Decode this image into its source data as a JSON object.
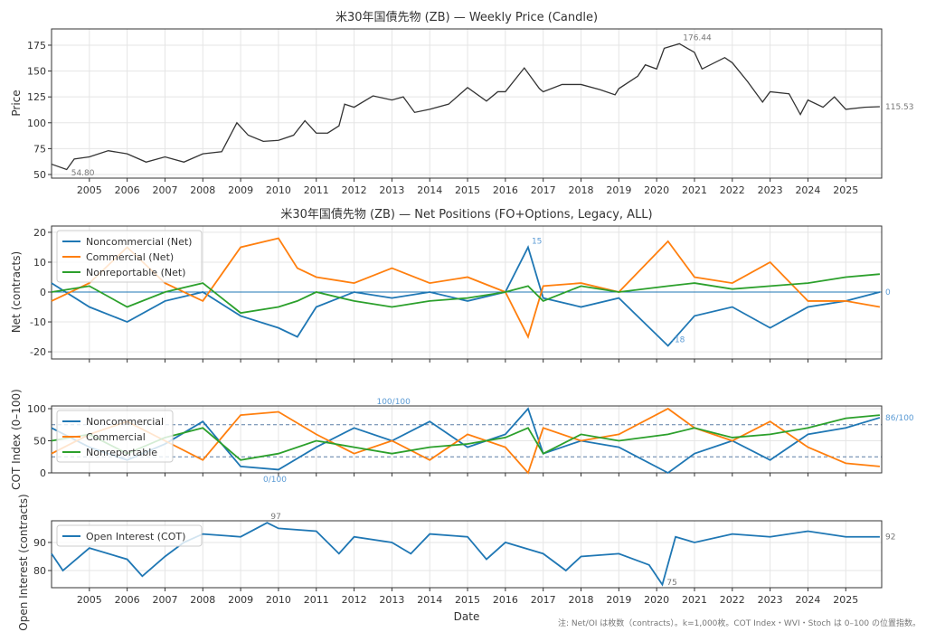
{
  "chart_data": [
    {
      "type": "line",
      "title": "米30年国債先物 (ZB) — Weekly Price (Candle)",
      "xlabel": "",
      "ylabel": "Price",
      "xlim": [
        2004.0,
        2025.95
      ],
      "ylim": [
        46.5,
        190.7
      ],
      "yticks": [
        50,
        75,
        100,
        125,
        150,
        175
      ],
      "xticks": [
        2005,
        2006,
        2007,
        2008,
        2009,
        2010,
        2011,
        2012,
        2013,
        2014,
        2015,
        2016,
        2017,
        2018,
        2019,
        2020,
        2021,
        2022,
        2023,
        2024,
        2025
      ],
      "grid": true,
      "color": "#333333",
      "annotations": [
        {
          "x": 2020.6,
          "y": 176.44,
          "text": "176.44"
        },
        {
          "x": 2004.4,
          "y": 54.8,
          "text": "54.80"
        },
        {
          "x": 2025.9,
          "y": 115.53,
          "text": "115.53"
        }
      ],
      "series": [
        {
          "x": [
            2004.0,
            2004.4,
            2004.6,
            2005.0,
            2005.5,
            2006.0,
            2006.5,
            2007.0,
            2007.5,
            2008.0,
            2008.5,
            2008.9,
            2009.2,
            2009.6,
            2010.0,
            2010.4,
            2010.7,
            2011.0,
            2011.3,
            2011.6,
            2011.75,
            2012.0,
            2012.5,
            2013.0,
            2013.3,
            2013.6,
            2014.0,
            2014.5,
            2015.0,
            2015.5,
            2015.8,
            2016.0,
            2016.5,
            2016.9,
            2017.0,
            2017.5,
            2018.0,
            2018.5,
            2018.9,
            2019.0,
            2019.5,
            2019.7,
            2020.0,
            2020.2,
            2020.6,
            2021.0,
            2021.2,
            2021.8,
            2022.0,
            2022.4,
            2022.8,
            2023.0,
            2023.5,
            2023.8,
            2024.0,
            2024.4,
            2024.7,
            2025.0,
            2025.5,
            2025.9
          ],
          "y": [
            60,
            54.8,
            65,
            67,
            73,
            70,
            62,
            67,
            62,
            70,
            72,
            100,
            88,
            82,
            83,
            88,
            102,
            90,
            90,
            97,
            118,
            115,
            126,
            122,
            125,
            110,
            113,
            118,
            134,
            121,
            130,
            130,
            153,
            133,
            130,
            137,
            137,
            132,
            127,
            133,
            145,
            156,
            152,
            172,
            176.44,
            168,
            152,
            163,
            158,
            140,
            120,
            130,
            128,
            108,
            122,
            115,
            125,
            113,
            115,
            115.53
          ]
        }
      ]
    },
    {
      "type": "line",
      "title": "米30年国債先物 (ZB) — Net Positions (FO+Options, Legacy, ALL)",
      "ylabel": "Net (contracts)",
      "xlim": [
        2004.0,
        2025.95
      ],
      "ylim": [
        -22.4,
        22.1
      ],
      "yticks": [
        -20,
        -10,
        0,
        10,
        20
      ],
      "grid": true,
      "legend": "top-left",
      "x": [
        2004,
        2005,
        2006,
        2007,
        2008,
        2009,
        2010,
        2010.5,
        2011,
        2012,
        2013,
        2014,
        2015,
        2016,
        2016.6,
        2017,
        2018,
        2019,
        2020.3,
        2021,
        2022,
        2023,
        2024,
        2025,
        2025.9
      ],
      "series": [
        {
          "name": "Noncommercial (Net)",
          "color": "#1f77b4",
          "values": [
            3,
            -5,
            -10,
            -3,
            0,
            -8,
            -12,
            -15,
            -5,
            0,
            -2,
            0,
            -3,
            0,
            15,
            -2,
            -5,
            -2,
            -18,
            -8,
            -5,
            -12,
            -5,
            -3,
            0
          ]
        },
        {
          "name": "Commercial (Net)",
          "color": "#ff7f0e",
          "values": [
            -3,
            3,
            15,
            3,
            -3,
            15,
            18,
            8,
            5,
            3,
            8,
            3,
            5,
            0,
            -15,
            2,
            3,
            0,
            17,
            5,
            3,
            10,
            -3,
            -3,
            -5
          ]
        },
        {
          "name": "Nonreportable (Net)",
          "color": "#2ca02c",
          "values": [
            0,
            2,
            -5,
            0,
            3,
            -7,
            -5,
            -3,
            0,
            -3,
            -5,
            -3,
            -2,
            0,
            2,
            -3,
            2,
            0,
            2,
            3,
            1,
            2,
            3,
            5,
            6
          ]
        }
      ],
      "annotations": [
        {
          "x": 2016.6,
          "y": 15,
          "text": "15"
        },
        {
          "x": 2020.3,
          "y": -18,
          "text": "-18"
        },
        {
          "x": 2025.9,
          "y": 0,
          "text": "0"
        }
      ]
    },
    {
      "type": "line",
      "ylabel": "COT Index (0–100)",
      "xlim": [
        2004.0,
        2025.95
      ],
      "ylim": [
        0,
        104.2
      ],
      "yticks": [
        0,
        50,
        100
      ],
      "grid": true,
      "legend": "top-left",
      "reference_lines": [
        25,
        75
      ],
      "x": [
        2004,
        2005,
        2006,
        2007,
        2008,
        2009,
        2010,
        2011,
        2012,
        2013,
        2014,
        2015,
        2016,
        2016.6,
        2017,
        2018,
        2019,
        2020.3,
        2021,
        2022,
        2023,
        2024,
        2025,
        2025.9
      ],
      "series": [
        {
          "name": "Noncommercial",
          "color": "#1f77b4",
          "values": [
            70,
            40,
            20,
            45,
            80,
            10,
            5,
            40,
            70,
            50,
            80,
            40,
            60,
            100,
            30,
            50,
            40,
            0,
            30,
            50,
            20,
            60,
            70,
            86
          ]
        },
        {
          "name": "Commercial",
          "color": "#ff7f0e",
          "values": [
            30,
            60,
            80,
            50,
            20,
            90,
            95,
            60,
            30,
            50,
            20,
            60,
            40,
            0,
            70,
            50,
            60,
            100,
            70,
            50,
            80,
            40,
            15,
            10
          ]
        },
        {
          "name": "Nonreportable",
          "color": "#2ca02c",
          "values": [
            50,
            60,
            30,
            55,
            70,
            20,
            30,
            50,
            40,
            30,
            40,
            45,
            55,
            70,
            30,
            60,
            50,
            60,
            70,
            55,
            60,
            70,
            85,
            90
          ]
        }
      ],
      "annotations": [
        {
          "x": 2012.5,
          "y": 100,
          "text": "100/100"
        },
        {
          "x": 2009.5,
          "y": 0,
          "text": "0/100"
        },
        {
          "x": 2025.9,
          "y": 86,
          "text": "86/100"
        }
      ]
    },
    {
      "type": "line",
      "ylabel": "Open Interest (contracts)",
      "xlabel": "Date",
      "xlim": [
        2004.0,
        2025.95
      ],
      "ylim": [
        73.9,
        97.7
      ],
      "yticks": [
        80,
        90
      ],
      "grid": true,
      "legend": "top-left",
      "xticks": [
        2005,
        2006,
        2007,
        2008,
        2009,
        2010,
        2011,
        2012,
        2013,
        2014,
        2015,
        2016,
        2017,
        2018,
        2019,
        2020,
        2021,
        2022,
        2023,
        2024,
        2025
      ],
      "series": [
        {
          "name": "Open Interest (COT)",
          "color": "#1f77b4",
          "x": [
            2004,
            2004.3,
            2005,
            2006,
            2006.4,
            2007,
            2007.5,
            2008,
            2009,
            2009.7,
            2010,
            2011,
            2011.6,
            2012,
            2013,
            2013.5,
            2014,
            2015,
            2015.5,
            2016,
            2017,
            2017.6,
            2018,
            2019,
            2019.8,
            2020.15,
            2020.5,
            2021,
            2022,
            2023,
            2024,
            2025,
            2025.9
          ],
          "y": [
            86,
            80,
            88,
            84,
            78,
            85,
            90,
            93,
            92,
            97,
            95,
            94,
            86,
            92,
            90,
            86,
            93,
            92,
            84,
            90,
            86,
            80,
            85,
            86,
            82,
            75,
            92,
            90,
            93,
            92,
            94,
            92,
            92
          ]
        }
      ],
      "annotations": [
        {
          "x": 2009.7,
          "y": 97,
          "text": "97"
        },
        {
          "x": 2020.15,
          "y": 75,
          "text": "75"
        },
        {
          "x": 2025.9,
          "y": 92,
          "text": "92"
        }
      ]
    }
  ],
  "footnote": "注: Net/OI は枚数（contracts）。k=1,000枚。COT Index・WVI・Stoch は 0–100 の位置指数。"
}
